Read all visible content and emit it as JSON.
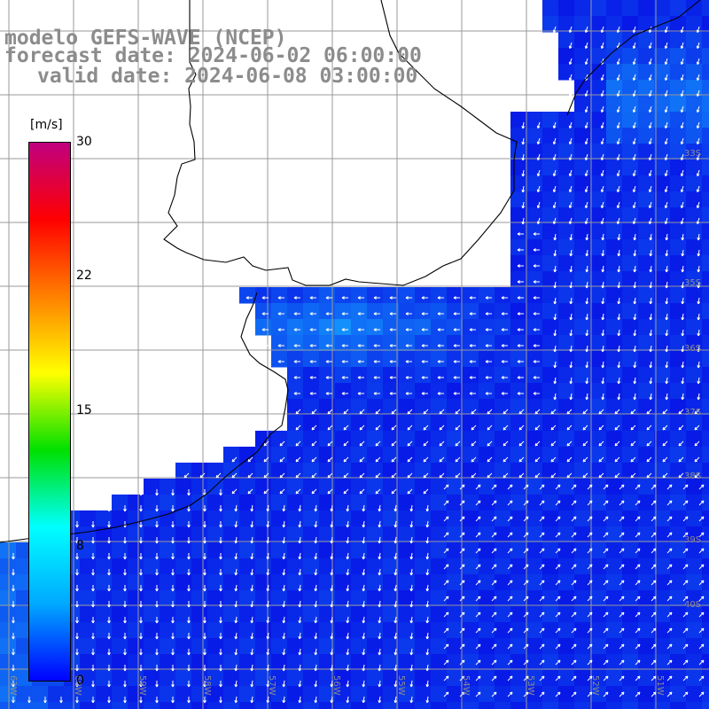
{
  "title": {
    "line1": "modelo GEFS-WAVE (NCEP)",
    "line2": "forecast date: 2024-06-02 06:00:00",
    "line3": "valid date: 2024-06-08 03:00:00"
  },
  "colorbar": {
    "unit": "[m/s]",
    "ticks": [
      "30",
      "22",
      "15",
      "8",
      "0"
    ],
    "tick_values": [
      30,
      22,
      15,
      8,
      0
    ],
    "colors": [
      "#0000ff",
      "#00a8ff",
      "#00ffff",
      "#00e000",
      "#ffff00",
      "#ff8000",
      "#ff0000",
      "#c0007f"
    ]
  },
  "map": {
    "lat_labels": [
      "33S",
      "35S",
      "36S",
      "37S",
      "38S",
      "39S",
      "40S"
    ],
    "lon_labels": [
      "61W",
      "60W",
      "59W",
      "58W",
      "57W",
      "56W",
      "55W",
      "54W",
      "53W",
      "52W",
      "51W"
    ],
    "land_color": "#ffffff",
    "ocean_speed_color": "#0a3cff",
    "arrow_color": "#ffffff",
    "grid_color": "#9a9a9a"
  }
}
